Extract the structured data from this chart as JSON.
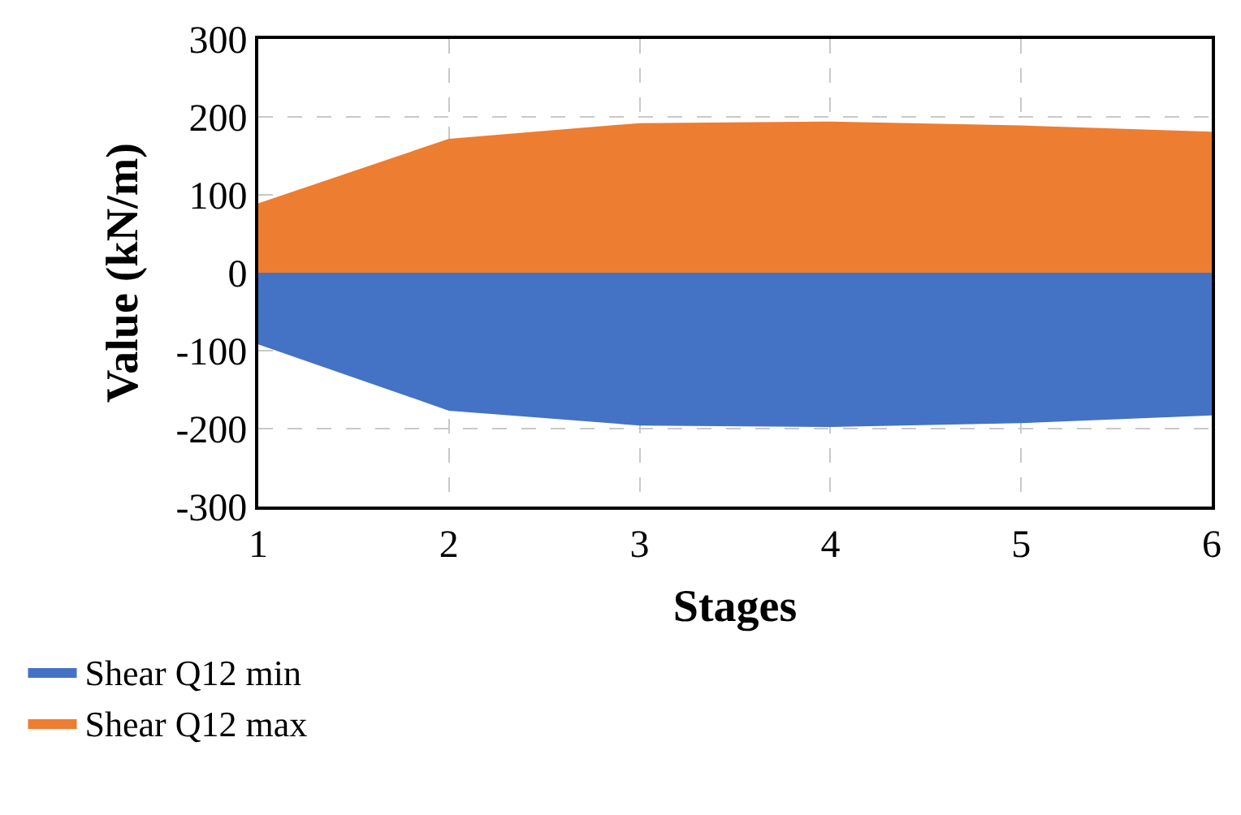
{
  "chart_data": {
    "type": "area",
    "xlabel": "Stages",
    "ylabel": "Value (kN/m)",
    "x": [
      1,
      2,
      3,
      4,
      5,
      6
    ],
    "xlim": [
      1,
      6
    ],
    "xticks": [
      1,
      2,
      3,
      4,
      5,
      6
    ],
    "ylim": [
      -300,
      300
    ],
    "yticks": [
      -300,
      -200,
      -100,
      0,
      100,
      200,
      300
    ],
    "series": [
      {
        "name": "Shear Q12 min",
        "color": "#4472c4",
        "values": [
          -92,
          -177,
          -196,
          -198,
          -193,
          -183
        ]
      },
      {
        "name": "Shear Q12 max",
        "color": "#ed7d31",
        "values": [
          89,
          172,
          192,
          194,
          189,
          181
        ]
      }
    ],
    "grid": true,
    "legend": "bottom left"
  }
}
